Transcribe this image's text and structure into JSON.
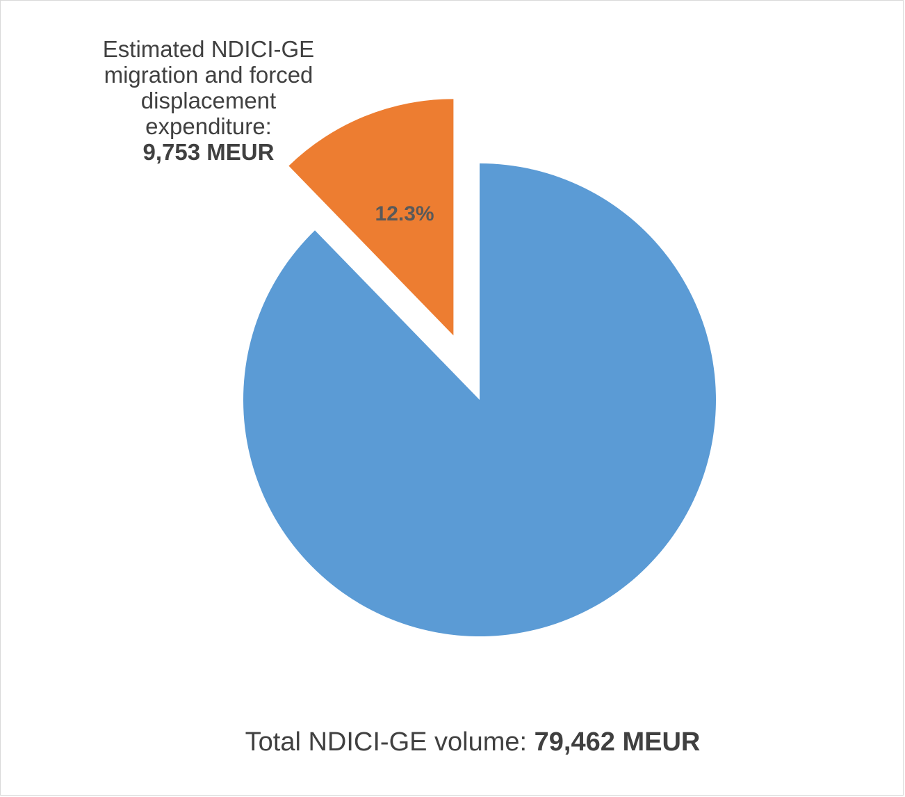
{
  "chart_data": {
    "type": "pie",
    "slices": [
      {
        "label": "",
        "value": 69709,
        "color": "#5b9bd5",
        "exploded": false
      },
      {
        "label": "Estimated NDICI-GE migration and forced displacement expenditure:",
        "value": 9753,
        "value_text": "9,753 MEUR",
        "percent_label": "12.3%",
        "color": "#ed7d31",
        "exploded": true
      }
    ],
    "total": 79462
  },
  "callout": {
    "line1": "Estimated NDICI-GE",
    "line2": "migration and forced",
    "line3": "displacement",
    "line4": "expenditure:",
    "value": "9,753 MEUR"
  },
  "footer": {
    "prefix": "Total NDICI-GE volume: ",
    "value": "79,462 MEUR"
  }
}
